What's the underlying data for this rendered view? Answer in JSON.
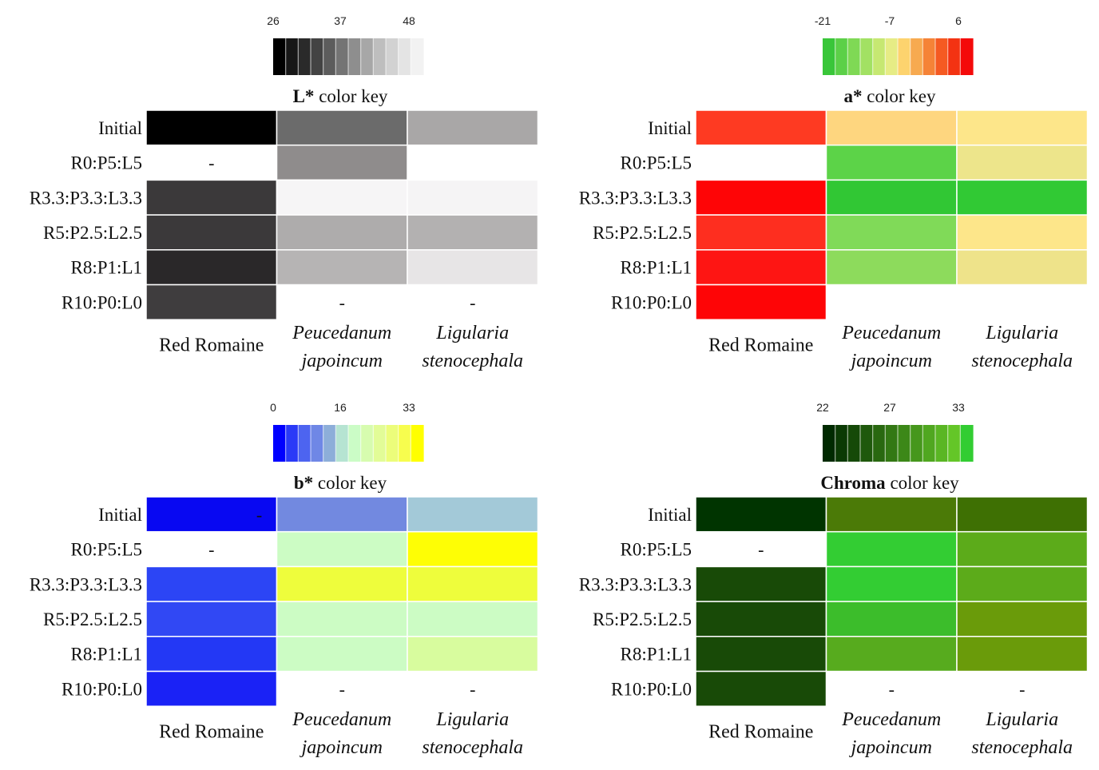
{
  "chart_data": [
    {
      "type": "heatmap",
      "key_bold": "L*",
      "key_rest": " color key",
      "key_ticks": [
        "26",
        "37",
        "48"
      ],
      "key_colors": [
        "#000000",
        "#171717",
        "#2a2a2a",
        "#434343",
        "#5c5c5c",
        "#747474",
        "#8e8e8e",
        "#a7a7a7",
        "#bebebe",
        "#d2d2d2",
        "#e4e4e4",
        "#f2f2f2"
      ],
      "rows": [
        "Initial",
        "R0:P5:L5",
        "R3.3:P3.3:L3.3",
        "R5:P2.5:L2.5",
        "R8:P1:L1",
        "R10:P0:L0"
      ],
      "columns": [
        {
          "line1": "Red Romaine",
          "line2": "",
          "italic": false
        },
        {
          "line1": "Peucedanum",
          "line2": "japoincum",
          "italic": true
        },
        {
          "line1": "Ligularia",
          "line2": "stenocephala",
          "italic": true
        }
      ],
      "cells": [
        [
          {
            "color": "#000000"
          },
          {
            "color": "#6b6b6b"
          },
          {
            "color": "#a9a7a7"
          }
        ],
        [
          {
            "color": null,
            "text": "-"
          },
          {
            "color": "#8f8c8c"
          },
          {
            "color": null
          }
        ],
        [
          {
            "color": "#3b393a"
          },
          {
            "color": "#f6f5f6"
          },
          {
            "color": "#f5f4f5"
          }
        ],
        [
          {
            "color": "#3b393a"
          },
          {
            "color": "#aeacac"
          },
          {
            "color": "#b3b1b1"
          }
        ],
        [
          {
            "color": "#2a2829"
          },
          {
            "color": "#b6b4b4"
          },
          {
            "color": "#e7e5e6"
          }
        ],
        [
          {
            "color": "#3f3d3e"
          },
          {
            "color": null,
            "text": "-"
          },
          {
            "color": null,
            "text": "-"
          }
        ]
      ]
    },
    {
      "type": "heatmap",
      "key_bold": "a*",
      "key_rest": " color key",
      "key_ticks": [
        "-21",
        "-7",
        "6"
      ],
      "key_colors": [
        "#39c639",
        "#5cd048",
        "#7fd955",
        "#a2e163",
        "#c6e872",
        "#e6ec85",
        "#fdd36e",
        "#f7aa50",
        "#f58337",
        "#f55a22",
        "#f33312",
        "#f40a0a"
      ],
      "rows": [
        "Initial",
        "R0:P5:L5",
        "R3.3:P3.3:L3.3",
        "R5:P2.5:L2.5",
        "R8:P1:L1",
        "R10:P0:L0"
      ],
      "columns": [
        {
          "line1": "Red Romaine",
          "line2": "",
          "italic": false
        },
        {
          "line1": "Peucedanum",
          "line2": "japoincum",
          "italic": true
        },
        {
          "line1": "Ligularia",
          "line2": "stenocephala",
          "italic": true
        }
      ],
      "cells": [
        [
          {
            "color": "#fe3a22"
          },
          {
            "color": "#fed67f"
          },
          {
            "color": "#fde68a"
          }
        ],
        [
          {
            "color": null
          },
          {
            "color": "#5cd348"
          },
          {
            "color": "#ede58b"
          }
        ],
        [
          {
            "color": "#fe0506"
          },
          {
            "color": "#31c734"
          },
          {
            "color": "#31c934"
          }
        ],
        [
          {
            "color": "#fe2e1f"
          },
          {
            "color": "#80da58"
          },
          {
            "color": "#fde68a"
          }
        ],
        [
          {
            "color": "#fe1513"
          },
          {
            "color": "#8ddb5c"
          },
          {
            "color": "#eee38a"
          }
        ],
        [
          {
            "color": "#fe0506"
          },
          {
            "color": null
          },
          {
            "color": null
          }
        ]
      ]
    },
    {
      "type": "heatmap",
      "key_bold": "b*",
      "key_rest": " color key",
      "key_ticks": [
        "0",
        "16",
        "33"
      ],
      "key_colors": [
        "#0000ff",
        "#2a3af7",
        "#4d64f0",
        "#6f87e6",
        "#8daed9",
        "#b6e4d2",
        "#cbfcc6",
        "#d7fcaf",
        "#e2fc97",
        "#ecfd7a",
        "#f7fd4e",
        "#ffff00"
      ],
      "rows": [
        "Initial",
        "R0:P5:L5",
        "R3.3:P3.3:L3.3",
        "R5:P2.5:L2.5",
        "R8:P1:L1",
        "R10:P0:L0"
      ],
      "columns": [
        {
          "line1": "Red Romaine",
          "line2": "",
          "italic": false
        },
        {
          "line1": "Peucedanum",
          "line2": "japoincum",
          "italic": true
        },
        {
          "line1": "Ligularia",
          "line2": "stenocephala",
          "italic": true
        }
      ],
      "cells": [
        [
          {
            "color": "#0808f2",
            "text": "-",
            "text_color": "#ffffff"
          },
          {
            "color": "#7289e0"
          },
          {
            "color": "#a3c9d8"
          }
        ],
        [
          {
            "color": null,
            "text": "-"
          },
          {
            "color": "#ccfcc4"
          },
          {
            "color": "#fefe05"
          }
        ],
        [
          {
            "color": "#2c45f5"
          },
          {
            "color": "#eefd3c"
          },
          {
            "color": "#eefd3c"
          }
        ],
        [
          {
            "color": "#3148f4"
          },
          {
            "color": "#ccfcc4"
          },
          {
            "color": "#ccfcc4"
          }
        ],
        [
          {
            "color": "#2338f5"
          },
          {
            "color": "#ccfcc4"
          },
          {
            "color": "#d8fc9e"
          }
        ],
        [
          {
            "color": "#1a22f6"
          },
          {
            "color": null,
            "text": "-"
          },
          {
            "color": null,
            "text": "-"
          }
        ]
      ]
    },
    {
      "type": "heatmap",
      "key_bold": "Chroma",
      "key_rest": " color key",
      "key_ticks": [
        "22",
        "27",
        "33"
      ],
      "key_colors": [
        "#002a00",
        "#0b3a04",
        "#154908",
        "#1f590c",
        "#296810",
        "#337814",
        "#3c8818",
        "#46971c",
        "#50a720",
        "#5ab624",
        "#64c628",
        "#32cd32"
      ],
      "rows": [
        "Initial",
        "R0:P5:L5",
        "R3.3:P3.3:L3.3",
        "R5:P2.5:L2.5",
        "R8:P1:L1",
        "R10:P0:L0"
      ],
      "columns": [
        {
          "line1": "Red Romaine",
          "line2": "",
          "italic": false
        },
        {
          "line1": "Peucedanum",
          "line2": "japoincum",
          "italic": true
        },
        {
          "line1": "Ligularia",
          "line2": "stenocephala",
          "italic": true
        }
      ],
      "cells": [
        [
          {
            "color": "#003400"
          },
          {
            "color": "#4b7a07"
          },
          {
            "color": "#3e7003"
          }
        ],
        [
          {
            "color": null,
            "text": "-"
          },
          {
            "color": "#33cd33"
          },
          {
            "color": "#5cab1a"
          }
        ],
        [
          {
            "color": "#184a07"
          },
          {
            "color": "#33cd33"
          },
          {
            "color": "#5cab1a"
          }
        ],
        [
          {
            "color": "#184a07"
          },
          {
            "color": "#3cbd2b"
          },
          {
            "color": "#6a9b0a"
          }
        ],
        [
          {
            "color": "#184a07"
          },
          {
            "color": "#57ab1e"
          },
          {
            "color": "#6a9b0a"
          }
        ],
        [
          {
            "color": "#184a07"
          },
          {
            "color": null,
            "text": "-"
          },
          {
            "color": null,
            "text": "-"
          }
        ]
      ]
    }
  ]
}
